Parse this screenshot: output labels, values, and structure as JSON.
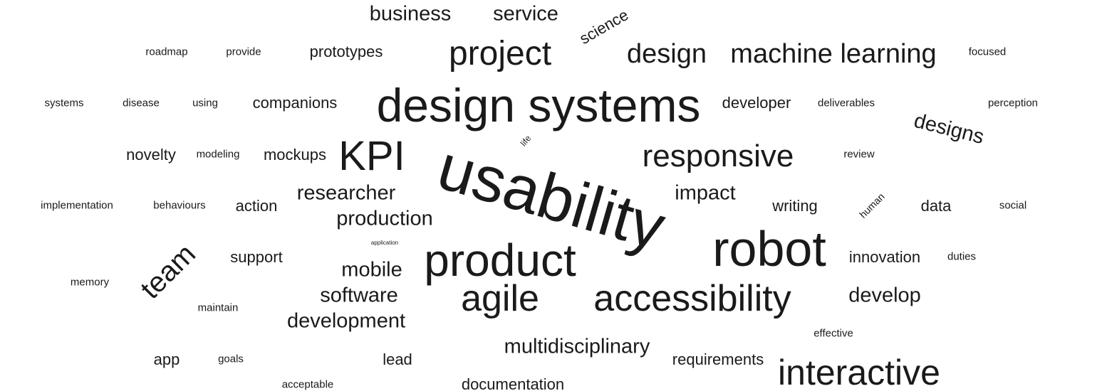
{
  "words": [
    {
      "text": "business"
    },
    {
      "text": "service"
    },
    {
      "text": "science"
    },
    {
      "text": "roadmap"
    },
    {
      "text": "provide"
    },
    {
      "text": "prototypes"
    },
    {
      "text": "project"
    },
    {
      "text": "design"
    },
    {
      "text": "machine learning"
    },
    {
      "text": "focused"
    },
    {
      "text": "systems"
    },
    {
      "text": "disease"
    },
    {
      "text": "using"
    },
    {
      "text": "companions"
    },
    {
      "text": "design systems"
    },
    {
      "text": "developer"
    },
    {
      "text": "deliverables"
    },
    {
      "text": "perception"
    },
    {
      "text": "designs"
    },
    {
      "text": "life"
    },
    {
      "text": "novelty"
    },
    {
      "text": "modeling"
    },
    {
      "text": "mockups"
    },
    {
      "text": "KPI"
    },
    {
      "text": "usability"
    },
    {
      "text": "responsive"
    },
    {
      "text": "review"
    },
    {
      "text": "implementation"
    },
    {
      "text": "behaviours"
    },
    {
      "text": "action"
    },
    {
      "text": "researcher"
    },
    {
      "text": "impact"
    },
    {
      "text": "writing"
    },
    {
      "text": "human"
    },
    {
      "text": "data"
    },
    {
      "text": "social"
    },
    {
      "text": "production"
    },
    {
      "text": "application"
    },
    {
      "text": "team"
    },
    {
      "text": "support"
    },
    {
      "text": "product"
    },
    {
      "text": "robot"
    },
    {
      "text": "innovation"
    },
    {
      "text": "duties"
    },
    {
      "text": "memory"
    },
    {
      "text": "mobile"
    },
    {
      "text": "software"
    },
    {
      "text": "agile"
    },
    {
      "text": "accessibility"
    },
    {
      "text": "develop"
    },
    {
      "text": "maintain"
    },
    {
      "text": "development"
    },
    {
      "text": "effective"
    },
    {
      "text": "multidisciplinary"
    },
    {
      "text": "app"
    },
    {
      "text": "goals"
    },
    {
      "text": "lead"
    },
    {
      "text": "requirements"
    },
    {
      "text": "interactive"
    },
    {
      "text": "acceptable"
    },
    {
      "text": "documentation"
    }
  ]
}
